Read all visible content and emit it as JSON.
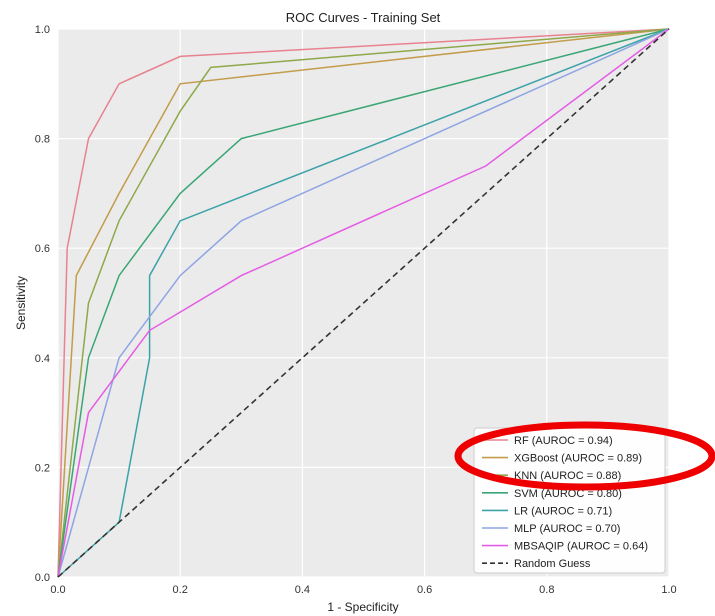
{
  "chart_data": {
    "type": "line",
    "title": "ROC Curves - Training Set",
    "xlabel": "1 - Specificity",
    "ylabel": "Sensitivity",
    "xlim": [
      0.0,
      1.0
    ],
    "ylim": [
      0.0,
      1.0
    ],
    "xticks": [
      0.0,
      0.2,
      0.4,
      0.6,
      0.8,
      1.0
    ],
    "xtick_labels": [
      "0.0",
      "0.2",
      "0.4",
      "0.6",
      "0.8",
      "1.0"
    ],
    "yticks": [
      0.0,
      0.2,
      0.4,
      0.6,
      0.8,
      1.0
    ],
    "ytick_labels": [
      "0.0",
      "0.2",
      "0.4",
      "0.6",
      "0.8",
      "1.0"
    ],
    "grid": true,
    "legend_position": "bottom-right",
    "background": "#ebebeb",
    "grid_color": "#ffffff",
    "series": [
      {
        "name": "RF (AUROC = 0.94)",
        "color": "#e8828f",
        "x": [
          0,
          0.015,
          0.05,
          0.1,
          0.2,
          1.0
        ],
        "y": [
          0,
          0.6,
          0.8,
          0.9,
          0.95,
          1.0
        ]
      },
      {
        "name": "XGBoost (AUROC = 0.89)",
        "color": "#c29c4a",
        "x": [
          0,
          0.03,
          0.1,
          0.2,
          1.0
        ],
        "y": [
          0,
          0.55,
          0.7,
          0.9,
          1.0
        ]
      },
      {
        "name": "KNN (AUROC = 0.88)",
        "color": "#8fa84a",
        "x": [
          0,
          0.05,
          0.1,
          0.2,
          0.25,
          1.0
        ],
        "y": [
          0,
          0.5,
          0.65,
          0.85,
          0.93,
          1.0
        ]
      },
      {
        "name": "SVM (AUROC = 0.80)",
        "color": "#3aa675",
        "x": [
          0,
          0.05,
          0.1,
          0.2,
          0.3,
          1.0
        ],
        "y": [
          0,
          0.4,
          0.55,
          0.7,
          0.8,
          1.0
        ]
      },
      {
        "name": "LR (AUROC = 0.71)",
        "color": "#3ba2a8",
        "x": [
          0,
          0.1,
          0.15,
          0.15,
          0.2,
          1.0
        ],
        "y": [
          0,
          0.1,
          0.4,
          0.55,
          0.65,
          1.0
        ]
      },
      {
        "name": "MLP (AUROC = 0.70)",
        "color": "#8ea4e3",
        "x": [
          0,
          0.1,
          0.2,
          0.3,
          1.0
        ],
        "y": [
          0,
          0.4,
          0.55,
          0.65,
          1.0
        ]
      },
      {
        "name": "MBSAQIP (AUROC = 0.64)",
        "color": "#e55ce4",
        "x": [
          0,
          0.05,
          0.15,
          0.3,
          0.7,
          1.0
        ],
        "y": [
          0,
          0.3,
          0.45,
          0.55,
          0.75,
          1.0
        ]
      },
      {
        "name": "Random Guess",
        "color": "#333333",
        "dashed": true,
        "x": [
          0,
          1.0
        ],
        "y": [
          0,
          1.0
        ]
      }
    ]
  },
  "annotation": {
    "type": "ellipse",
    "color": "#ee0000",
    "highlights": [
      "RF (AUROC = 0.94)",
      "XGBoost (AUROC = 0.89)"
    ]
  }
}
